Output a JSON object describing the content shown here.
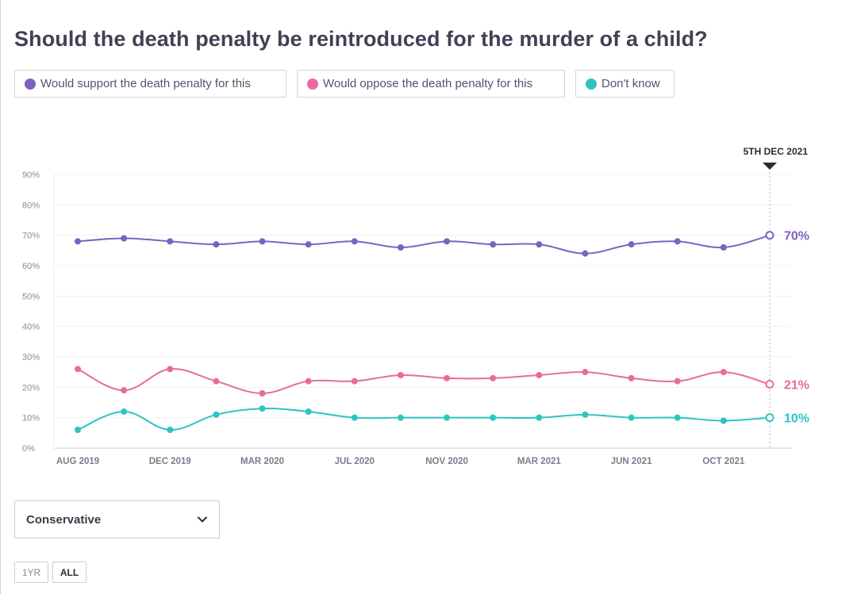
{
  "title": "Should the death penalty be reintroduced for the murder of a child?",
  "legend": [
    {
      "label": "Would support the death penalty for this",
      "color": "#7d62c0"
    },
    {
      "label": "Would oppose the death penalty for this",
      "color": "#ea6aa0"
    },
    {
      "label": "Don't know",
      "color": "#2ec4c1"
    }
  ],
  "dropdown": {
    "value": "Conservative"
  },
  "range_buttons": {
    "one_year": "1YR",
    "all": "ALL"
  },
  "chart_data": {
    "type": "line",
    "marker_label": "5TH DEC 2021",
    "y_ticks": [
      "0%",
      "10%",
      "20%",
      "30%",
      "40%",
      "50%",
      "60%",
      "70%",
      "80%",
      "90%"
    ],
    "ylim": [
      0,
      90
    ],
    "x_tick_labels": [
      {
        "label": "AUG 2019",
        "index": 0
      },
      {
        "label": "DEC 2019",
        "index": 2
      },
      {
        "label": "MAR 2020",
        "index": 4
      },
      {
        "label": "JUL 2020",
        "index": 6
      },
      {
        "label": "NOV 2020",
        "index": 8
      },
      {
        "label": "MAR 2021",
        "index": 10
      },
      {
        "label": "JUN 2021",
        "index": 12
      },
      {
        "label": "OCT 2021",
        "index": 14
      }
    ],
    "series": [
      {
        "name": "Would support the death penalty for this",
        "color": "#7d62c0",
        "end_label": "70%",
        "values": [
          68,
          69,
          68,
          67,
          68,
          67,
          68,
          66,
          68,
          67,
          67,
          64,
          67,
          68,
          66,
          70
        ]
      },
      {
        "name": "Would oppose the death penalty for this",
        "color": "#ea6aa0",
        "end_label": "21%",
        "values": [
          26,
          19,
          26,
          22,
          18,
          22,
          22,
          24,
          23,
          23,
          24,
          25,
          23,
          22,
          25,
          21
        ]
      },
      {
        "name": "Don't know",
        "color": "#2ec4c1",
        "end_label": "10%",
        "values": [
          6,
          12,
          6,
          11,
          13,
          12,
          10,
          10,
          10,
          10,
          10,
          11,
          10,
          10,
          9,
          10
        ]
      }
    ]
  }
}
